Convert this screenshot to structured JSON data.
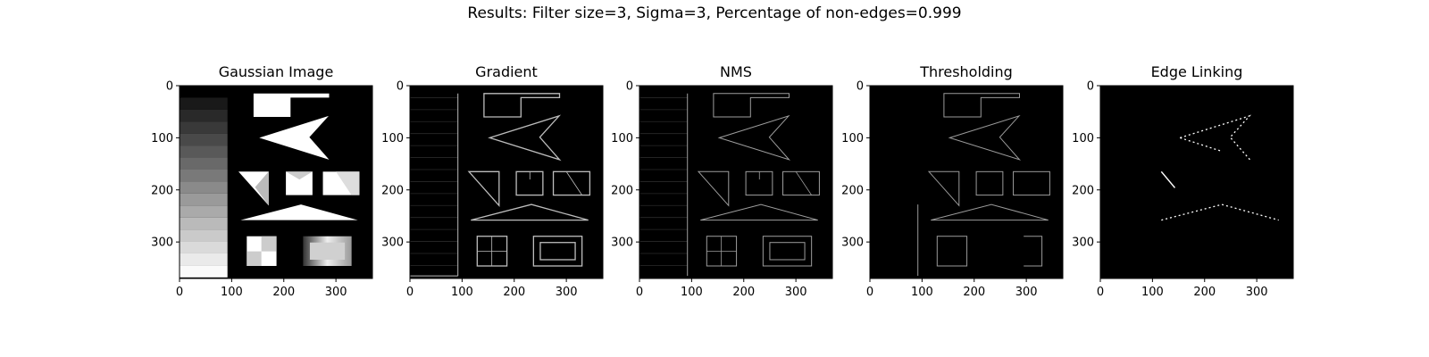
{
  "suptitle": "Results: Filter size=3, Sigma=3, Percentage of non-edges=0.999",
  "chart_data": {
    "type": "image-grid",
    "axis_range": {
      "x": [
        0,
        370
      ],
      "y": [
        370,
        0
      ]
    },
    "xticks": [
      0,
      100,
      200,
      300
    ],
    "yticks": [
      0,
      100,
      200,
      300
    ],
    "panels": [
      {
        "id": "gaussian",
        "title": "Gaussian Image"
      },
      {
        "id": "gradient",
        "title": "Gradient"
      },
      {
        "id": "nms",
        "title": "NMS"
      },
      {
        "id": "thresholding",
        "title": "Thresholding"
      },
      {
        "id": "edge_linking",
        "title": "Edge Linking"
      }
    ]
  }
}
